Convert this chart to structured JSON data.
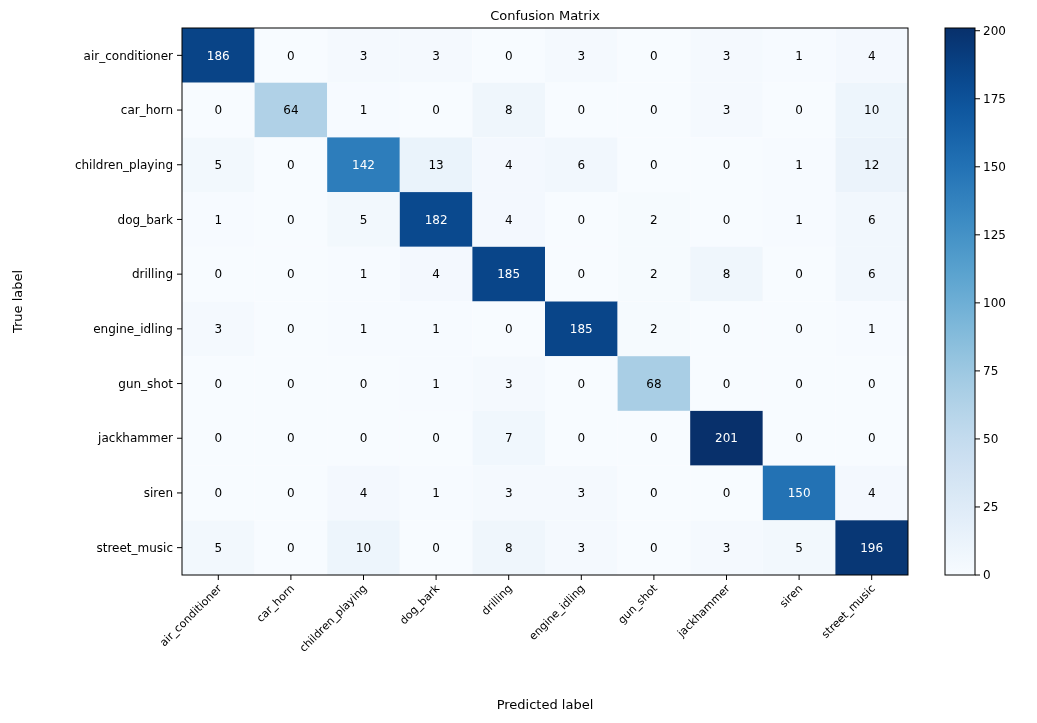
{
  "chart_data": {
    "type": "heatmap",
    "title": "Confusion Matrix",
    "xlabel": "Predicted label",
    "ylabel": "True label",
    "categories": [
      "air_conditioner",
      "car_horn",
      "children_playing",
      "dog_bark",
      "drilling",
      "engine_idling",
      "gun_shot",
      "jackhammer",
      "siren",
      "street_music"
    ],
    "y_categories": [
      "air_conditioner",
      "car_horn",
      "children_playing",
      "dog_bark",
      "drilling",
      "engine_idling",
      "gun_shot",
      "jackhammer",
      "siren",
      "street_music"
    ],
    "cells": [
      [
        186,
        0,
        3,
        3,
        0,
        3,
        0,
        3,
        1,
        4
      ],
      [
        0,
        64,
        1,
        0,
        8,
        0,
        0,
        3,
        0,
        10
      ],
      [
        5,
        0,
        142,
        13,
        4,
        6,
        0,
        0,
        1,
        12
      ],
      [
        1,
        0,
        5,
        182,
        4,
        0,
        2,
        0,
        1,
        6
      ],
      [
        0,
        0,
        1,
        4,
        185,
        0,
        2,
        8,
        0,
        6
      ],
      [
        3,
        0,
        1,
        1,
        0,
        185,
        2,
        0,
        0,
        1
      ],
      [
        0,
        0,
        0,
        1,
        3,
        0,
        68,
        0,
        0,
        0
      ],
      [
        0,
        0,
        0,
        0,
        7,
        0,
        0,
        201,
        0,
        0
      ],
      [
        0,
        0,
        4,
        1,
        3,
        3,
        0,
        0,
        150,
        4
      ],
      [
        5,
        0,
        10,
        0,
        8,
        3,
        0,
        3,
        5,
        196
      ]
    ],
    "clim": [
      0,
      201
    ],
    "cticks": [
      0,
      25,
      50,
      75,
      100,
      125,
      150,
      175,
      200
    ],
    "data_labels": true
  }
}
